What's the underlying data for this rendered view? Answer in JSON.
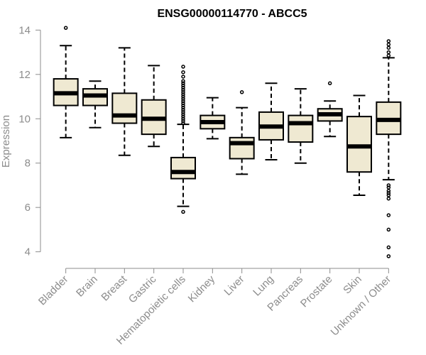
{
  "chart_data": {
    "type": "boxplot",
    "title": "ENSG00000114770 - ABCC5",
    "ylabel": "Expression",
    "ylim": [
      3.7,
      14.3
    ],
    "yticks": [
      4,
      6,
      8,
      10,
      12,
      14
    ],
    "box_fill": "#efe9d2",
    "categories": [
      "Bladder",
      "Brain",
      "Breast",
      "Gastric",
      "Hematopoietic cells",
      "Kidney",
      "Liver",
      "Lung",
      "Pancreas",
      "Prostate",
      "Skin",
      "Unknown / Other"
    ],
    "boxes": [
      {
        "min": 9.15,
        "q1": 10.6,
        "median": 11.15,
        "q3": 11.8,
        "max": 13.3,
        "outliers": [
          14.1
        ]
      },
      {
        "min": 9.6,
        "q1": 10.6,
        "median": 11.05,
        "q3": 11.35,
        "max": 11.7,
        "outliers": []
      },
      {
        "min": 8.35,
        "q1": 9.8,
        "median": 10.15,
        "q3": 11.15,
        "max": 13.2,
        "outliers": []
      },
      {
        "min": 8.75,
        "q1": 9.3,
        "median": 10.0,
        "q3": 10.85,
        "max": 12.4,
        "outliers": []
      },
      {
        "min": 6.05,
        "q1": 7.3,
        "median": 7.6,
        "q3": 8.25,
        "max": 9.75,
        "outliers": [
          5.8,
          9.8,
          9.9,
          10.0,
          10.1,
          10.2,
          10.3,
          10.4,
          10.5,
          10.6,
          10.7,
          10.8,
          10.9,
          11.0,
          11.1,
          11.2,
          11.3,
          11.4,
          11.5,
          11.6,
          11.7,
          11.9,
          12.1,
          12.35
        ]
      },
      {
        "min": 9.1,
        "q1": 9.55,
        "median": 9.85,
        "q3": 10.15,
        "max": 10.95,
        "outliers": []
      },
      {
        "min": 7.5,
        "q1": 8.2,
        "median": 8.9,
        "q3": 9.15,
        "max": 10.5,
        "outliers": [
          11.2
        ]
      },
      {
        "min": 8.15,
        "q1": 9.05,
        "median": 9.65,
        "q3": 10.3,
        "max": 11.6,
        "outliers": []
      },
      {
        "min": 8.0,
        "q1": 8.95,
        "median": 9.8,
        "q3": 10.15,
        "max": 11.35,
        "outliers": []
      },
      {
        "min": 9.2,
        "q1": 9.9,
        "median": 10.2,
        "q3": 10.45,
        "max": 10.8,
        "outliers": [
          11.6
        ]
      },
      {
        "min": 6.55,
        "q1": 7.6,
        "median": 8.75,
        "q3": 10.1,
        "max": 11.05,
        "outliers": []
      },
      {
        "min": 7.25,
        "q1": 9.3,
        "median": 9.95,
        "q3": 10.75,
        "max": 12.75,
        "outliers": [
          3.8,
          4.2,
          5.0,
          5.65,
          6.4,
          6.55,
          6.65,
          6.75,
          6.9,
          7.0,
          12.85,
          13.0,
          13.2,
          13.35,
          13.5
        ]
      }
    ]
  }
}
